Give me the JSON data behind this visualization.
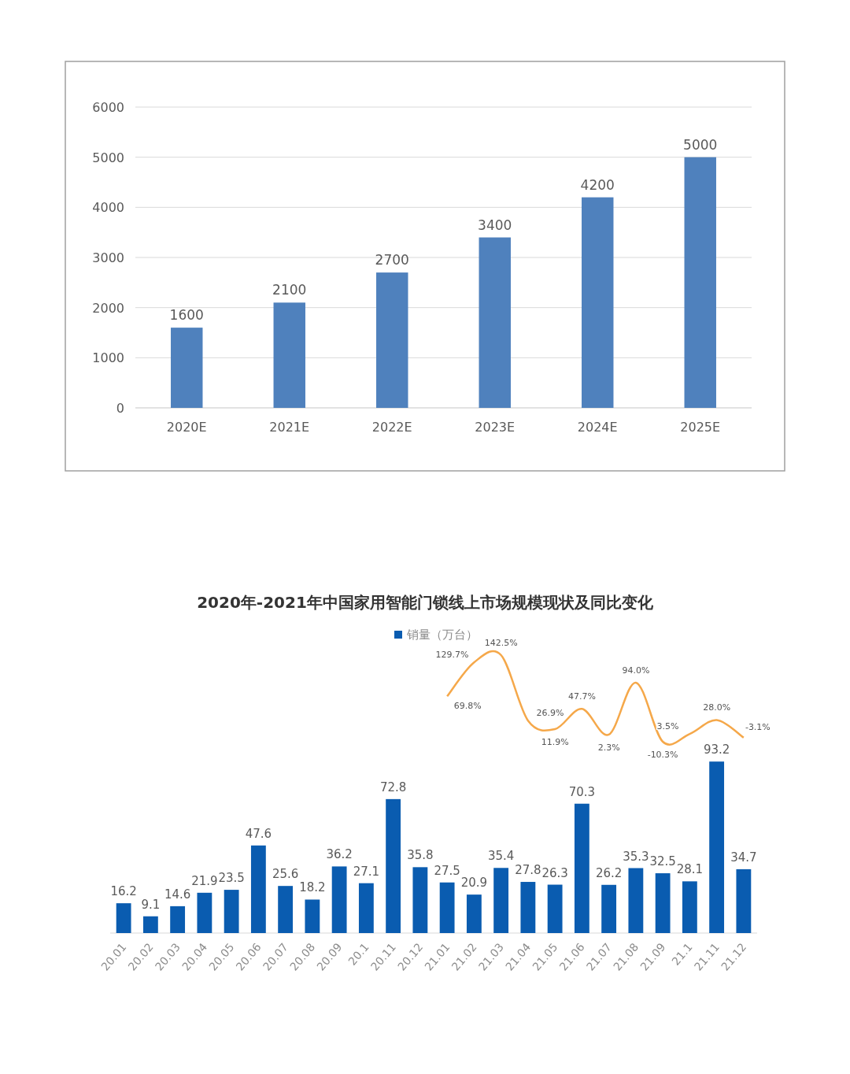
{
  "chart_data": [
    {
      "type": "bar",
      "categories": [
        "2020E",
        "2021E",
        "2022E",
        "2023E",
        "2024E",
        "2025E"
      ],
      "series": [
        {
          "color": "#4f81bd",
          "values": [
            1600,
            2100,
            2700,
            3400,
            4200,
            5000
          ]
        }
      ],
      "ylim": [
        0,
        6000
      ],
      "yticks": [
        0,
        1000,
        2000,
        3000,
        4000,
        5000,
        6000
      ],
      "grid": "y",
      "data_labels": true,
      "legend": false
    },
    {
      "type": "bar",
      "categories": [
        "20.01",
        "20.02",
        "20.03",
        "20.04",
        "20.05",
        "20.06",
        "20.07",
        "20.08",
        "20.09",
        "20.1",
        "20.11",
        "20.12",
        "21.01",
        "21.02",
        "21.03",
        "21.04",
        "21.05",
        "21.06",
        "21.07",
        "21.08",
        "21.09",
        "21.1",
        "21.11",
        "21.12"
      ],
      "series": [
        {
          "name": "销量（万台）",
          "color": "#0a5cb0",
          "values": [
            16.2,
            9.1,
            14.6,
            21.9,
            23.5,
            47.6,
            25.6,
            18.2,
            36.2,
            27.1,
            72.8,
            35.8,
            27.5,
            20.9,
            35.4,
            27.8,
            26.3,
            70.3,
            26.2,
            35.3,
            32.5,
            28.1,
            93.2,
            34.7
          ]
        }
      ],
      "tick_labels": "x",
      "grid": false,
      "data_labels": true,
      "legend": "top"
    },
    {
      "type": "line",
      "title": "2020年-2021年中国家用智能门锁线上市场规模现状及同比变化",
      "categories": [
        null,
        null,
        null,
        null,
        null,
        null,
        null,
        null,
        null,
        null,
        null,
        null
      ],
      "series": [
        {
          "color": "#f5a84a",
          "values": [
            69.8,
            129.7,
            142.5,
            26.9,
            11.9,
            47.7,
            2.3,
            94.0,
            -10.3,
            3.5,
            28.0,
            -3.1
          ],
          "value_labels": [
            "69.8%",
            "129.7%",
            "142.5%",
            "26.9%",
            "11.9%",
            "47.7%",
            "2.3%",
            "94.0%",
            "-10.3%",
            "3.5%",
            "28.0%",
            "-3.1%"
          ]
        }
      ],
      "tick_labels": false,
      "grid": false
    }
  ]
}
